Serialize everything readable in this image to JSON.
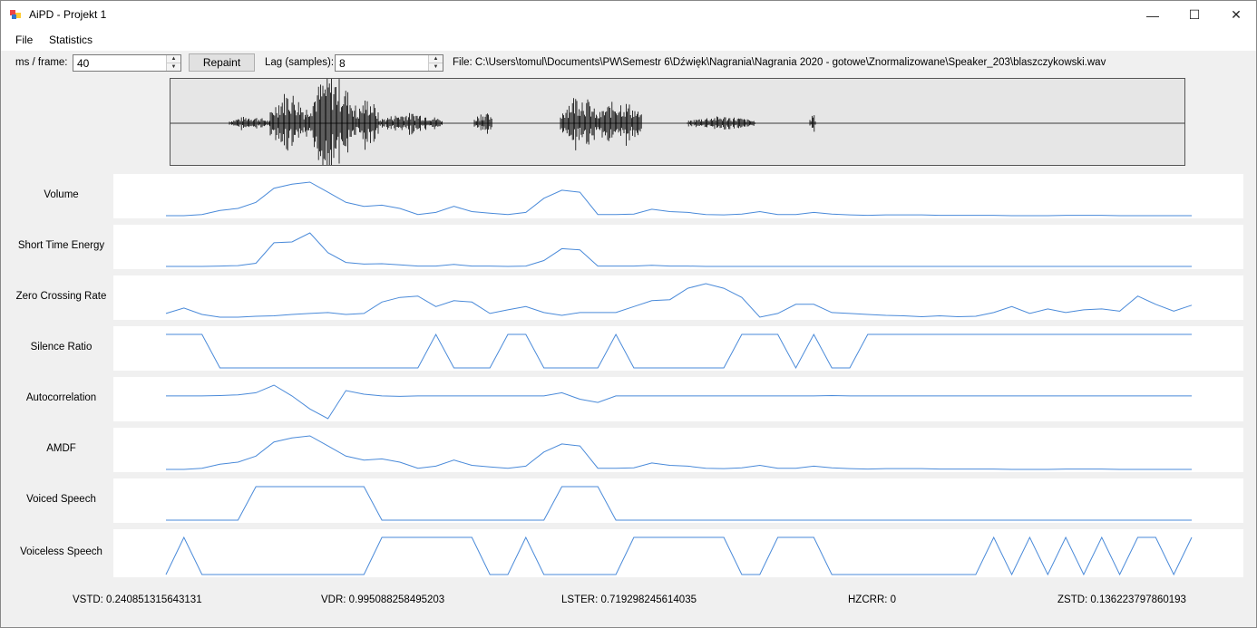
{
  "window": {
    "title": "AiPD - Projekt 1",
    "minimize_glyph": "—",
    "maximize_glyph": "☐",
    "close_glyph": "✕"
  },
  "menu": {
    "items": [
      "File",
      "Statistics"
    ]
  },
  "controls": {
    "ms_label": "ms / frame:",
    "ms_value": "40",
    "repaint_label": "Repaint",
    "lag_label": "Lag (samples):",
    "lag_value": "8",
    "file_label": "File: C:\\Users\\tomul\\Documents\\PW\\Semestr 6\\Dźwięk\\Nagrania\\Nagrania 2020 - gotowe\\Znormalizowane\\Speaker_203\\blaszczykowski.wav"
  },
  "colors": {
    "plot_line": "#4a8ad9",
    "waveform": "#000000"
  },
  "chart_data": [
    {
      "type": "line",
      "label": "Volume",
      "values": [
        0.02,
        0.02,
        0.05,
        0.15,
        0.2,
        0.35,
        0.7,
        0.8,
        0.85,
        0.6,
        0.35,
        0.25,
        0.28,
        0.2,
        0.05,
        0.1,
        0.25,
        0.12,
        0.08,
        0.05,
        0.1,
        0.45,
        0.65,
        0.6,
        0.05,
        0.05,
        0.06,
        0.18,
        0.12,
        0.1,
        0.05,
        0.04,
        0.06,
        0.12,
        0.05,
        0.05,
        0.1,
        0.06,
        0.04,
        0.03,
        0.04,
        0.04,
        0.04,
        0.03,
        0.03,
        0.03,
        0.03,
        0.02,
        0.02,
        0.02,
        0.03,
        0.03,
        0.03,
        0.02,
        0.02,
        0.02,
        0.02,
        0.02
      ]
    },
    {
      "type": "line",
      "label": "Short Time Energy",
      "values": [
        0,
        0,
        0,
        0.01,
        0.02,
        0.08,
        0.6,
        0.62,
        0.85,
        0.35,
        0.1,
        0.06,
        0.07,
        0.04,
        0.01,
        0.01,
        0.05,
        0.01,
        0.01,
        0.0,
        0.01,
        0.15,
        0.45,
        0.42,
        0.01,
        0.01,
        0.01,
        0.03,
        0.01,
        0.01,
        0,
        0,
        0,
        0,
        0,
        0,
        0,
        0,
        0,
        0,
        0,
        0,
        0,
        0,
        0,
        0,
        0,
        0,
        0,
        0,
        0,
        0,
        0,
        0,
        0,
        0,
        0,
        0
      ]
    },
    {
      "type": "line",
      "label": "Zero Crossing Rate",
      "values": [
        0.2,
        0.32,
        0.18,
        0.12,
        0.12,
        0.14,
        0.15,
        0.18,
        0.2,
        0.22,
        0.18,
        0.2,
        0.45,
        0.55,
        0.58,
        0.35,
        0.48,
        0.45,
        0.2,
        0.28,
        0.35,
        0.22,
        0.16,
        0.22,
        0.22,
        0.22,
        0.35,
        0.48,
        0.5,
        0.75,
        0.85,
        0.75,
        0.55,
        0.12,
        0.2,
        0.4,
        0.4,
        0.22,
        0.2,
        0.18,
        0.16,
        0.15,
        0.13,
        0.15,
        0.13,
        0.14,
        0.22,
        0.35,
        0.2,
        0.3,
        0.22,
        0.28,
        0.3,
        0.25,
        0.58,
        0.4,
        0.25,
        0.38
      ]
    },
    {
      "type": "line",
      "label": "Silence Ratio",
      "values": [
        1,
        1,
        1,
        0,
        0,
        0,
        0,
        0,
        0,
        0,
        0,
        0,
        0,
        0,
        0,
        1,
        0,
        0,
        0,
        1,
        1,
        0,
        0,
        0,
        0,
        1,
        0,
        0,
        0,
        0,
        0,
        0,
        1,
        1,
        1,
        0,
        1,
        0,
        0,
        1,
        1,
        1,
        1,
        1,
        1,
        1,
        1,
        1,
        1,
        1,
        1,
        1,
        1,
        1,
        1,
        1,
        1,
        1
      ]
    },
    {
      "type": "line",
      "label": "Autocorrelation",
      "values": [
        0.6,
        0.6,
        0.6,
        0.62,
        0.65,
        0.75,
        1.1,
        0.6,
        0.0,
        -0.45,
        0.85,
        0.68,
        0.6,
        0.58,
        0.6,
        0.6,
        0.6,
        0.6,
        0.6,
        0.6,
        0.6,
        0.6,
        0.75,
        0.45,
        0.3,
        0.6,
        0.6,
        0.6,
        0.6,
        0.6,
        0.6,
        0.6,
        0.6,
        0.6,
        0.6,
        0.6,
        0.6,
        0.62,
        0.6,
        0.6,
        0.6,
        0.6,
        0.6,
        0.6,
        0.6,
        0.6,
        0.6,
        0.6,
        0.6,
        0.6,
        0.6,
        0.6,
        0.6,
        0.6,
        0.6,
        0.6,
        0.6,
        0.6
      ]
    },
    {
      "type": "line",
      "label": "AMDF",
      "values": [
        0.02,
        0.02,
        0.05,
        0.15,
        0.2,
        0.35,
        0.7,
        0.8,
        0.85,
        0.6,
        0.35,
        0.25,
        0.28,
        0.2,
        0.05,
        0.1,
        0.25,
        0.12,
        0.08,
        0.05,
        0.1,
        0.45,
        0.65,
        0.6,
        0.05,
        0.05,
        0.06,
        0.18,
        0.12,
        0.1,
        0.05,
        0.04,
        0.06,
        0.12,
        0.05,
        0.05,
        0.1,
        0.06,
        0.04,
        0.03,
        0.04,
        0.04,
        0.04,
        0.03,
        0.03,
        0.03,
        0.03,
        0.02,
        0.02,
        0.02,
        0.03,
        0.03,
        0.03,
        0.02,
        0.02,
        0.02,
        0.02,
        0.02
      ]
    },
    {
      "type": "line",
      "label": "Voiced Speech",
      "values": [
        0,
        0,
        0,
        0,
        0,
        1,
        1,
        1,
        1,
        1,
        1,
        1,
        0,
        0,
        0,
        0,
        0,
        0,
        0,
        0,
        0,
        0,
        1,
        1,
        1,
        0,
        0,
        0,
        0,
        0,
        0,
        0,
        0,
        0,
        0,
        0,
        0,
        0,
        0,
        0,
        0,
        0,
        0,
        0,
        0,
        0,
        0,
        0,
        0,
        0,
        0,
        0,
        0,
        0,
        0,
        0,
        0,
        0
      ]
    },
    {
      "type": "line",
      "label": "Voiceless Speech",
      "values": [
        0,
        1,
        0,
        0,
        0,
        0,
        0,
        0,
        0,
        0,
        0,
        0,
        1,
        1,
        1,
        1,
        1,
        1,
        0,
        0,
        1,
        0,
        0,
        0,
        0,
        0,
        1,
        1,
        1,
        1,
        1,
        1,
        0,
        0,
        1,
        1,
        1,
        0,
        0,
        0,
        0,
        0,
        0,
        0,
        0,
        0,
        1,
        0,
        1,
        0,
        1,
        0,
        1,
        0,
        1,
        1,
        0,
        1
      ]
    }
  ],
  "stats": {
    "vstd": "VSTD: 0.240851315643131",
    "vdr": "VDR: 0.995088258495203",
    "lster": "LSTER: 0.719298245614035",
    "hzcrr": "HZCRR: 0",
    "zstd": "ZSTD: 0.136223797860193"
  }
}
